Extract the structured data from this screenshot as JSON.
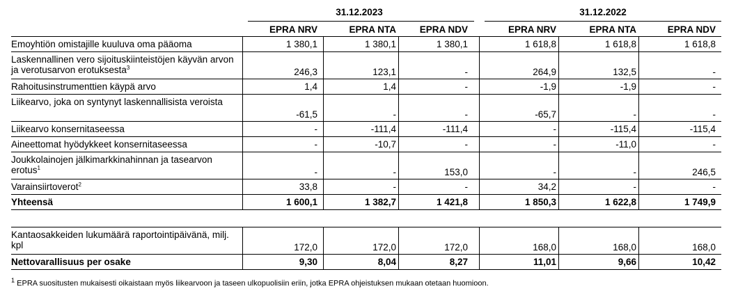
{
  "periods": [
    "31.12.2023",
    "31.12.2022"
  ],
  "columns": [
    "EPRA NRV",
    "EPRA NTA",
    "EPRA NDV",
    "EPRA NRV",
    "EPRA NTA",
    "EPRA NDV"
  ],
  "rows": [
    {
      "label": "Emoyhtiön omistajille kuuluva oma pääoma",
      "sup": "",
      "values": [
        "1 380,1",
        "1 380,1",
        "1 380,1",
        "1 618,8",
        "1 618,8",
        "1 618,8"
      ]
    },
    {
      "label": "Laskennallinen vero sijoituskiinteistöjen käyvän arvon ja verotusarvon erotuksesta",
      "sup": "3",
      "values": [
        "246,3",
        "123,1",
        "-",
        "264,9",
        "132,5",
        "-"
      ]
    },
    {
      "label": "Rahoitusinstrumenttien käypä arvo",
      "sup": "",
      "values": [
        "1,4",
        "1,4",
        "-",
        "-1,9",
        "-1,9",
        "-"
      ]
    },
    {
      "label": "Liikearvo, joka on syntynyt laskennallisista veroista",
      "sup": "",
      "values": [
        "-61,5",
        "-",
        "-",
        "-65,7",
        "-",
        "-"
      ]
    },
    {
      "label": "Liikearvo konsernitaseessa",
      "sup": "",
      "values": [
        "-",
        "-111,4",
        "-111,4",
        "-",
        "-115,4",
        "-115,4"
      ]
    },
    {
      "label": "Aineettomat hyödykkeet konsernitaseessa",
      "sup": "",
      "values": [
        "-",
        "-10,7",
        "-",
        "-",
        "-11,0",
        "-"
      ]
    },
    {
      "label": "Joukkolainojen jälkimarkkinahinnan ja tasearvon erotus",
      "sup": "1",
      "values": [
        "-",
        "-",
        "153,0",
        "-",
        "-",
        "246,5"
      ]
    },
    {
      "label": "Varainsiirtoverot",
      "sup": "2",
      "values": [
        "33,8",
        "-",
        "-",
        "34,2",
        "-",
        "-"
      ]
    },
    {
      "label": "Yhteensä",
      "sup": "",
      "values": [
        "1 600,1",
        "1 382,7",
        "1 421,8",
        "1 850,3",
        "1 622,8",
        "1 749,9"
      ]
    }
  ],
  "rows2": [
    {
      "label": "Kantaosakkeiden lukumäärä raportointipäivänä, milj. kpl",
      "sup": "",
      "values": [
        "172,0",
        "172,0",
        "172,0",
        "168,0",
        "168,0",
        "168,0"
      ]
    },
    {
      "label": "Nettovarallisuus per osake",
      "sup": "",
      "values": [
        "9,30",
        "8,04",
        "8,27",
        "11,01",
        "9,66",
        "10,42"
      ]
    }
  ],
  "footnote": {
    "mark": "1",
    "text": "EPRA suositusten mukaisesti oikaistaan myös liikearvoon ja taseen ulkopuolisiin eriin, jotka EPRA ohjeistuksen mukaan otetaan huomioon."
  }
}
